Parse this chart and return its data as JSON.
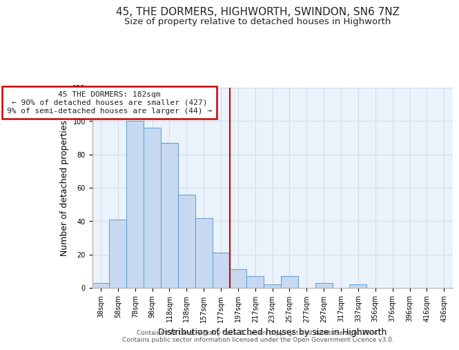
{
  "title": "45, THE DORMERS, HIGHWORTH, SWINDON, SN6 7NZ",
  "subtitle": "Size of property relative to detached houses in Highworth",
  "xlabel": "Distribution of detached houses by size in Highworth",
  "ylabel": "Number of detached properties",
  "bar_labels": [
    "38sqm",
    "58sqm",
    "78sqm",
    "98sqm",
    "118sqm",
    "138sqm",
    "157sqm",
    "177sqm",
    "197sqm",
    "217sqm",
    "237sqm",
    "257sqm",
    "277sqm",
    "297sqm",
    "317sqm",
    "337sqm",
    "356sqm",
    "376sqm",
    "396sqm",
    "416sqm",
    "436sqm"
  ],
  "bar_values": [
    3,
    41,
    100,
    96,
    87,
    56,
    42,
    21,
    11,
    7,
    2,
    7,
    0,
    3,
    0,
    2,
    0,
    0,
    0,
    0,
    0
  ],
  "bar_color": "#c6d9f0",
  "bar_edge_color": "#5b9bd5",
  "vline_x_index": 7,
  "annotation_title": "45 THE DORMERS: 182sqm",
  "annotation_line1": "← 90% of detached houses are smaller (427)",
  "annotation_line2": "9% of semi-detached houses are larger (44) →",
  "annotation_box_color": "#ffffff",
  "annotation_box_edge": "#cc0000",
  "vline_color": "#cc0000",
  "footer1": "Contains HM Land Registry data © Crown copyright and database right 2024.",
  "footer2": "Contains public sector information licensed under the Open Government Licence v3.0.",
  "ylim": [
    0,
    120
  ],
  "yticks": [
    0,
    20,
    40,
    60,
    80,
    100,
    120
  ],
  "bg_color": "#eaf2fb",
  "grid_color": "#d0dce8",
  "title_fontsize": 11,
  "subtitle_fontsize": 9.5,
  "xlabel_fontsize": 9,
  "ylabel_fontsize": 9,
  "tick_fontsize": 7,
  "footer_fontsize": 6.5,
  "annot_fontsize": 8
}
